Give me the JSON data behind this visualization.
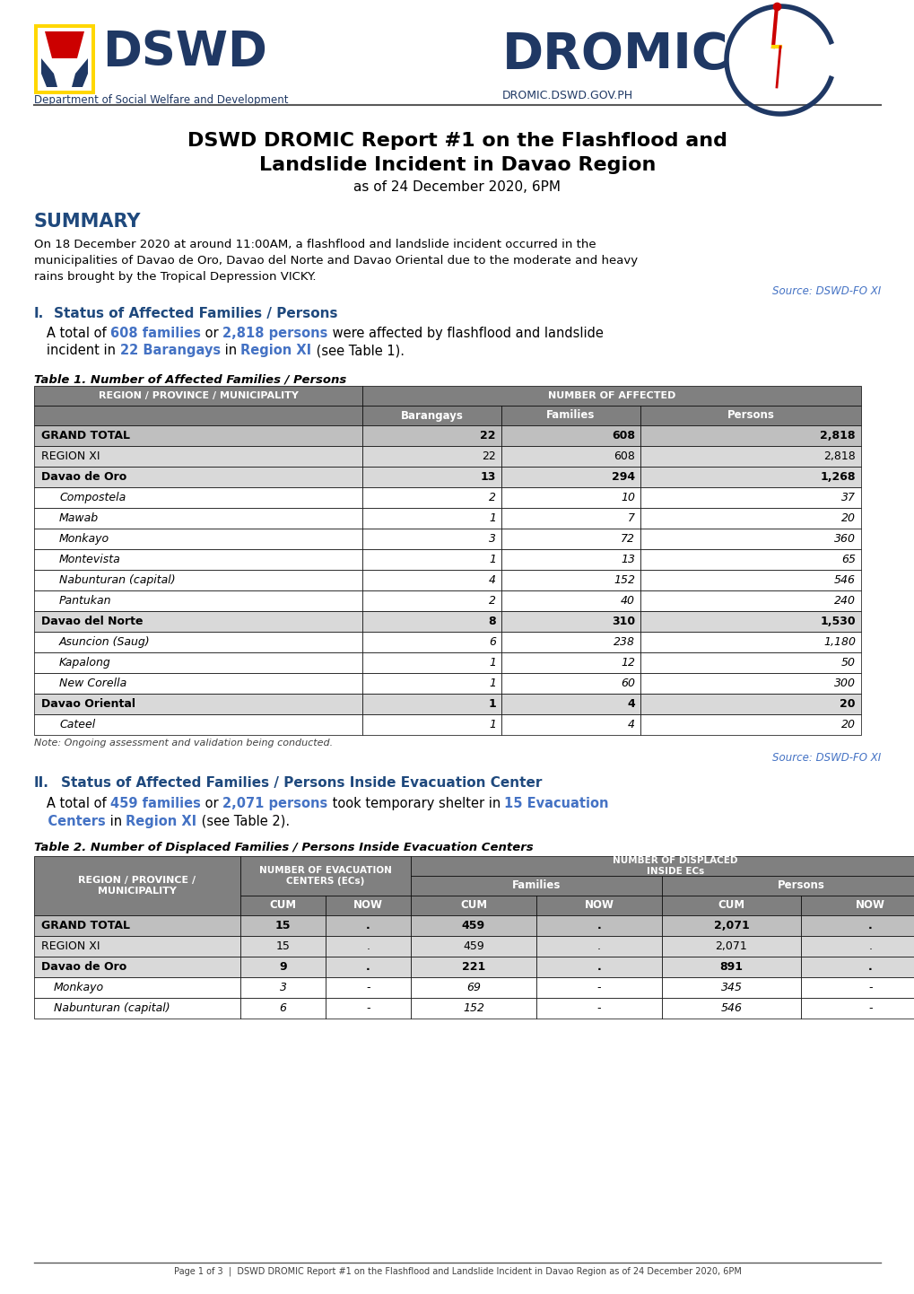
{
  "title_line1": "DSWD DROMIC Report #1 on the Flashflood and",
  "title_line2": "Landslide Incident in Davao Region",
  "title_line3": "as of 24 December 2020, 6PM",
  "summary_header": "SUMMARY",
  "summary_text_lines": [
    "On 18 December 2020 at around 11:00AM, a flashflood and landslide incident occurred in the",
    "municipalities of Davao de Oro, Davao del Norte and Davao Oriental due to the moderate and heavy",
    "rains brought by the Tropical Depression VICKY."
  ],
  "source_text": "Source: DSWD-FO XI",
  "table1_title": "Table 1. Number of Affected Families / Persons",
  "table1_rows": [
    {
      "label": "GRAND TOTAL",
      "barangays": "22",
      "families": "608",
      "persons": "2,818",
      "level": "grand"
    },
    {
      "label": "REGION XI",
      "barangays": "22",
      "families": "608",
      "persons": "2,818",
      "level": "region"
    },
    {
      "label": "Davao de Oro",
      "barangays": "13",
      "families": "294",
      "persons": "1,268",
      "level": "province"
    },
    {
      "label": "Compostela",
      "barangays": "2",
      "families": "10",
      "persons": "37",
      "level": "municipality"
    },
    {
      "label": "Mawab",
      "barangays": "1",
      "families": "7",
      "persons": "20",
      "level": "municipality"
    },
    {
      "label": "Monkayo",
      "barangays": "3",
      "families": "72",
      "persons": "360",
      "level": "municipality"
    },
    {
      "label": "Montevista",
      "barangays": "1",
      "families": "13",
      "persons": "65",
      "level": "municipality"
    },
    {
      "label": "Nabunturan (capital)",
      "barangays": "4",
      "families": "152",
      "persons": "546",
      "level": "municipality"
    },
    {
      "label": "Pantukan",
      "barangays": "2",
      "families": "40",
      "persons": "240",
      "level": "municipality"
    },
    {
      "label": "Davao del Norte",
      "barangays": "8",
      "families": "310",
      "persons": "1,530",
      "level": "province"
    },
    {
      "label": "Asuncion (Saug)",
      "barangays": "6",
      "families": "238",
      "persons": "1,180",
      "level": "municipality"
    },
    {
      "label": "Kapalong",
      "barangays": "1",
      "families": "12",
      "persons": "50",
      "level": "municipality"
    },
    {
      "label": "New Corella",
      "barangays": "1",
      "families": "60",
      "persons": "300",
      "level": "municipality"
    },
    {
      "label": "Davao Oriental",
      "barangays": "1",
      "families": "4",
      "persons": "20",
      "level": "province"
    },
    {
      "label": "Cateel",
      "barangays": "1",
      "families": "4",
      "persons": "20",
      "level": "municipality"
    }
  ],
  "table1_note": "Note: Ongoing assessment and validation being conducted.",
  "table2_title": "Table 2. Number of Displaced Families / Persons Inside Evacuation Centers",
  "table2_rows": [
    {
      "label": "GRAND TOTAL",
      "ec_cum": "15",
      "ec_now": ".",
      "fam_cum": "459",
      "fam_now": ".",
      "per_cum": "2,071",
      "per_now": ".",
      "level": "grand"
    },
    {
      "label": "REGION XI",
      "ec_cum": "15",
      "ec_now": ".",
      "fam_cum": "459",
      "fam_now": ".",
      "per_cum": "2,071",
      "per_now": ".",
      "level": "region"
    },
    {
      "label": "Davao de Oro",
      "ec_cum": "9",
      "ec_now": ".",
      "fam_cum": "221",
      "fam_now": ".",
      "per_cum": "891",
      "per_now": ".",
      "level": "province"
    },
    {
      "label": "Monkayo",
      "ec_cum": "3",
      "ec_now": "-",
      "fam_cum": "69",
      "fam_now": "-",
      "per_cum": "345",
      "per_now": "-",
      "level": "municipality"
    },
    {
      "label": "Nabunturan (capital)",
      "ec_cum": "6",
      "ec_now": "-",
      "fam_cum": "152",
      "fam_now": "-",
      "per_cum": "546",
      "per_now": "-",
      "level": "municipality"
    }
  ],
  "footer_text": "Page 1 of 3  |  DSWD DROMIC Report #1 on the Flashflood and Landslide Incident in Davao Region as of 24 December 2020, 6PM",
  "colors": {
    "dark_blue": "#1F3864",
    "medium_blue": "#1F497D",
    "highlight_blue": "#4472C4",
    "table_dark_header": "#595959",
    "table_med_header": "#808080",
    "table_grand_bg": "#BFBFBF",
    "table_region_bg": "#D9D9D9",
    "table_province_bg": "#D9D9D9",
    "table_white": "#FFFFFF",
    "source_blue": "#4472C4",
    "line_color": "#595959"
  }
}
